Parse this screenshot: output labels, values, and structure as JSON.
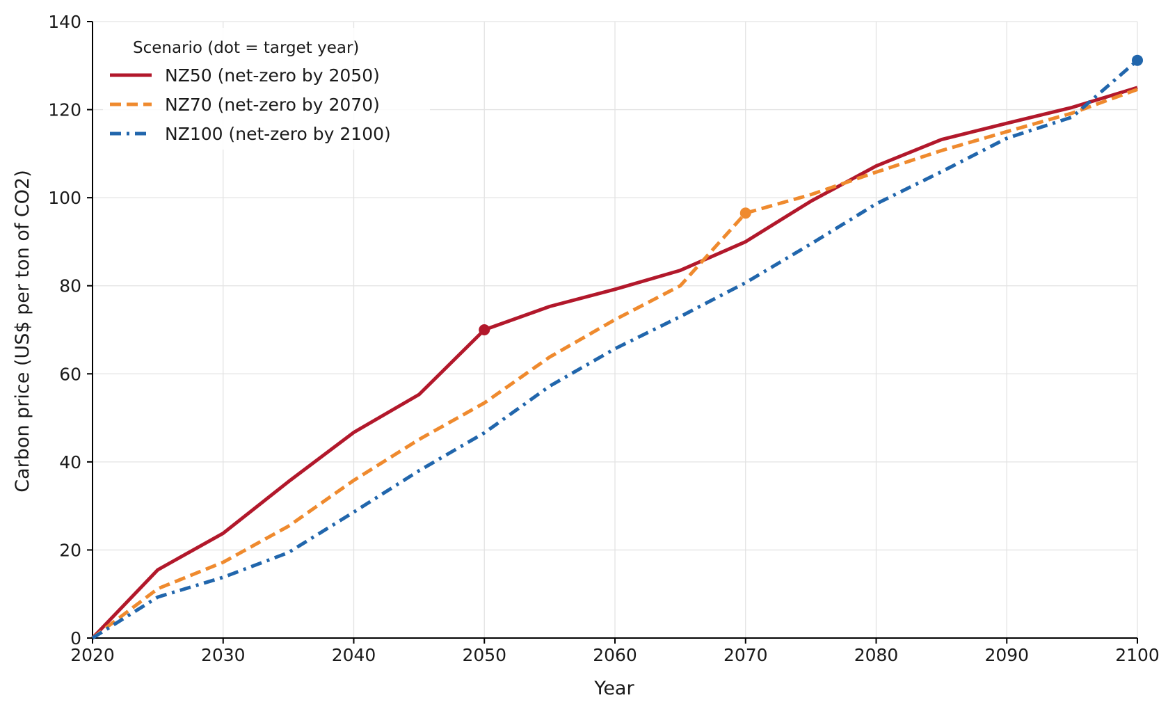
{
  "chart_data": {
    "type": "line",
    "title": "",
    "xlabel": "Year",
    "ylabel": "Carbon price (US$ per ton of CO2)",
    "xlim": [
      2020,
      2100
    ],
    "ylim": [
      0,
      140
    ],
    "xticks": [
      2020,
      2030,
      2040,
      2050,
      2060,
      2070,
      2080,
      2090,
      2100
    ],
    "yticks": [
      0,
      20,
      40,
      60,
      80,
      100,
      120,
      140
    ],
    "grid": true,
    "legend": {
      "title": "Scenario (dot = target year)",
      "placement": "top-left"
    },
    "x": [
      2020,
      2025,
      2030,
      2035,
      2040,
      2045,
      2050,
      2055,
      2060,
      2065,
      2070,
      2075,
      2080,
      2085,
      2090,
      2095,
      2100
    ],
    "series": [
      {
        "name": "NZ50 (net-zero by 2050)",
        "color": "#b2182b",
        "dash": "solid",
        "target_year": 2050,
        "values": [
          0,
          15.5,
          23.8,
          35.5,
          46.7,
          55.3,
          70,
          75.3,
          79.2,
          83.5,
          90.0,
          99.2,
          107.2,
          113.2,
          116.9,
          120.5,
          125
        ]
      },
      {
        "name": "NZ70 (net-zero by 2070)",
        "color": "#ef8a2e",
        "dash": "dashed",
        "target_year": 2070,
        "values": [
          0,
          11.2,
          17.2,
          25.4,
          35.8,
          45.1,
          53.4,
          63.8,
          72.3,
          80.0,
          96.5,
          100.7,
          105.8,
          110.7,
          115.0,
          119.2,
          124.6
        ]
      },
      {
        "name": "NZ100 (net-zero by 2100)",
        "color": "#2166ac",
        "dash": "dashdot",
        "target_year": 2100,
        "values": [
          0,
          9.3,
          13.8,
          19.4,
          28.6,
          38.0,
          46.6,
          57.2,
          65.7,
          73.0,
          80.7,
          89.5,
          98.6,
          105.9,
          113.5,
          118.3,
          131.2
        ]
      }
    ]
  }
}
